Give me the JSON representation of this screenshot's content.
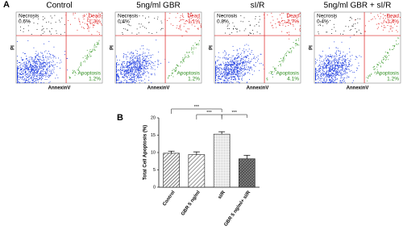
{
  "panel_labels": [
    "A",
    "B"
  ],
  "panel_a": {
    "x_label": "AnnexinV",
    "y_label": "PI",
    "plots": [
      {
        "title": "Control",
        "necrosis": "Necrosis",
        "necrosis_value": "0.6%",
        "dead": "Dead",
        "dead_value": "1.3%",
        "apoptosis": "Apoptosis",
        "apoptosis_value": "1.2%"
      },
      {
        "title": "5ng/ml GBR",
        "necrosis": "Necrosis",
        "necrosis_value": "0.4%",
        "dead": "Dead",
        "dead_value": "1.1%",
        "apoptosis": "Apoptosis",
        "apoptosis_value": "1.2%"
      },
      {
        "title": "sI/R",
        "necrosis": "Necrosis",
        "necrosis_value": "0.8%",
        "dead": "Dead",
        "dead_value": "2.7%",
        "apoptosis": "Apoptosis",
        "apoptosis_value": "4.1%"
      },
      {
        "title": "5ng/ml GBR + sI/R",
        "necrosis": "Necrosis",
        "necrosis_value": "0.4%",
        "dead": "Dead",
        "dead_value": "1.4%",
        "apoptosis": "Apoptosis",
        "apoptosis_value": "1.2%"
      }
    ]
  },
  "chart_data": {
    "type": "bar",
    "y_label": "Total Cell Apoptosis (%)",
    "categories": [
      "Control",
      "GBR 5 ng/ml",
      "sI/R",
      "GBR 5 ng/ml+ sI/R"
    ],
    "values": [
      9.8,
      9.4,
      15.3,
      8.2
    ],
    "errors": [
      0.6,
      0.8,
      0.7,
      1.0
    ],
    "ylim": [
      0,
      20
    ],
    "yticks": [
      0,
      5,
      10,
      15,
      20
    ],
    "annotations": [
      "***",
      "***",
      "***"
    ]
  }
}
